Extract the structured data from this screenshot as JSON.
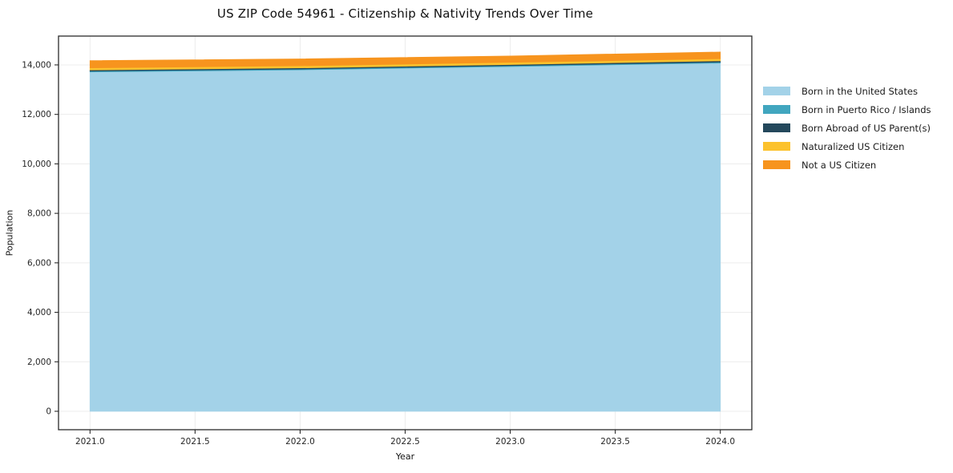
{
  "chart": {
    "title": "US ZIP Code 54961 - Citizenship & Nativity Trends Over Time",
    "xlabel": "Year",
    "ylabel": "Population"
  },
  "chart_data": {
    "type": "area",
    "stacked": true,
    "title": "US ZIP Code 54961 - Citizenship & Nativity Trends Over Time",
    "xlabel": "Year",
    "ylabel": "Population",
    "x": [
      2021,
      2022,
      2023,
      2024
    ],
    "series": [
      {
        "name": "Born in the United States",
        "color": "#a3d2e8",
        "values": [
          13715,
          13800,
          13935,
          14075
        ]
      },
      {
        "name": "Born in Puerto Rico / Islands",
        "color": "#41a6bf",
        "values": [
          35,
          35,
          35,
          40
        ]
      },
      {
        "name": "Born Abroad of US Parent(s)",
        "color": "#24485c",
        "values": [
          45,
          45,
          45,
          50
        ]
      },
      {
        "name": "Naturalized US Citizen",
        "color": "#fcc22d",
        "values": [
          85,
          85,
          90,
          85
        ]
      },
      {
        "name": "Not a US Citizen",
        "color": "#f7941e",
        "values": [
          290,
          275,
          255,
          270
        ]
      }
    ],
    "totals": [
      14170,
      14240,
      14360,
      14520
    ],
    "xlim": [
      2020.85,
      2024.15
    ],
    "ylim": [
      -745,
      15165
    ],
    "x_ticks": [
      2021.0,
      2021.5,
      2022.0,
      2022.5,
      2023.0,
      2023.5,
      2024.0
    ],
    "y_ticks": [
      0,
      2000,
      4000,
      6000,
      8000,
      10000,
      12000,
      14000
    ],
    "grid": true,
    "grid_color": "#ececec",
    "spine_color": "#2b2b2b",
    "legend_position": "right"
  }
}
